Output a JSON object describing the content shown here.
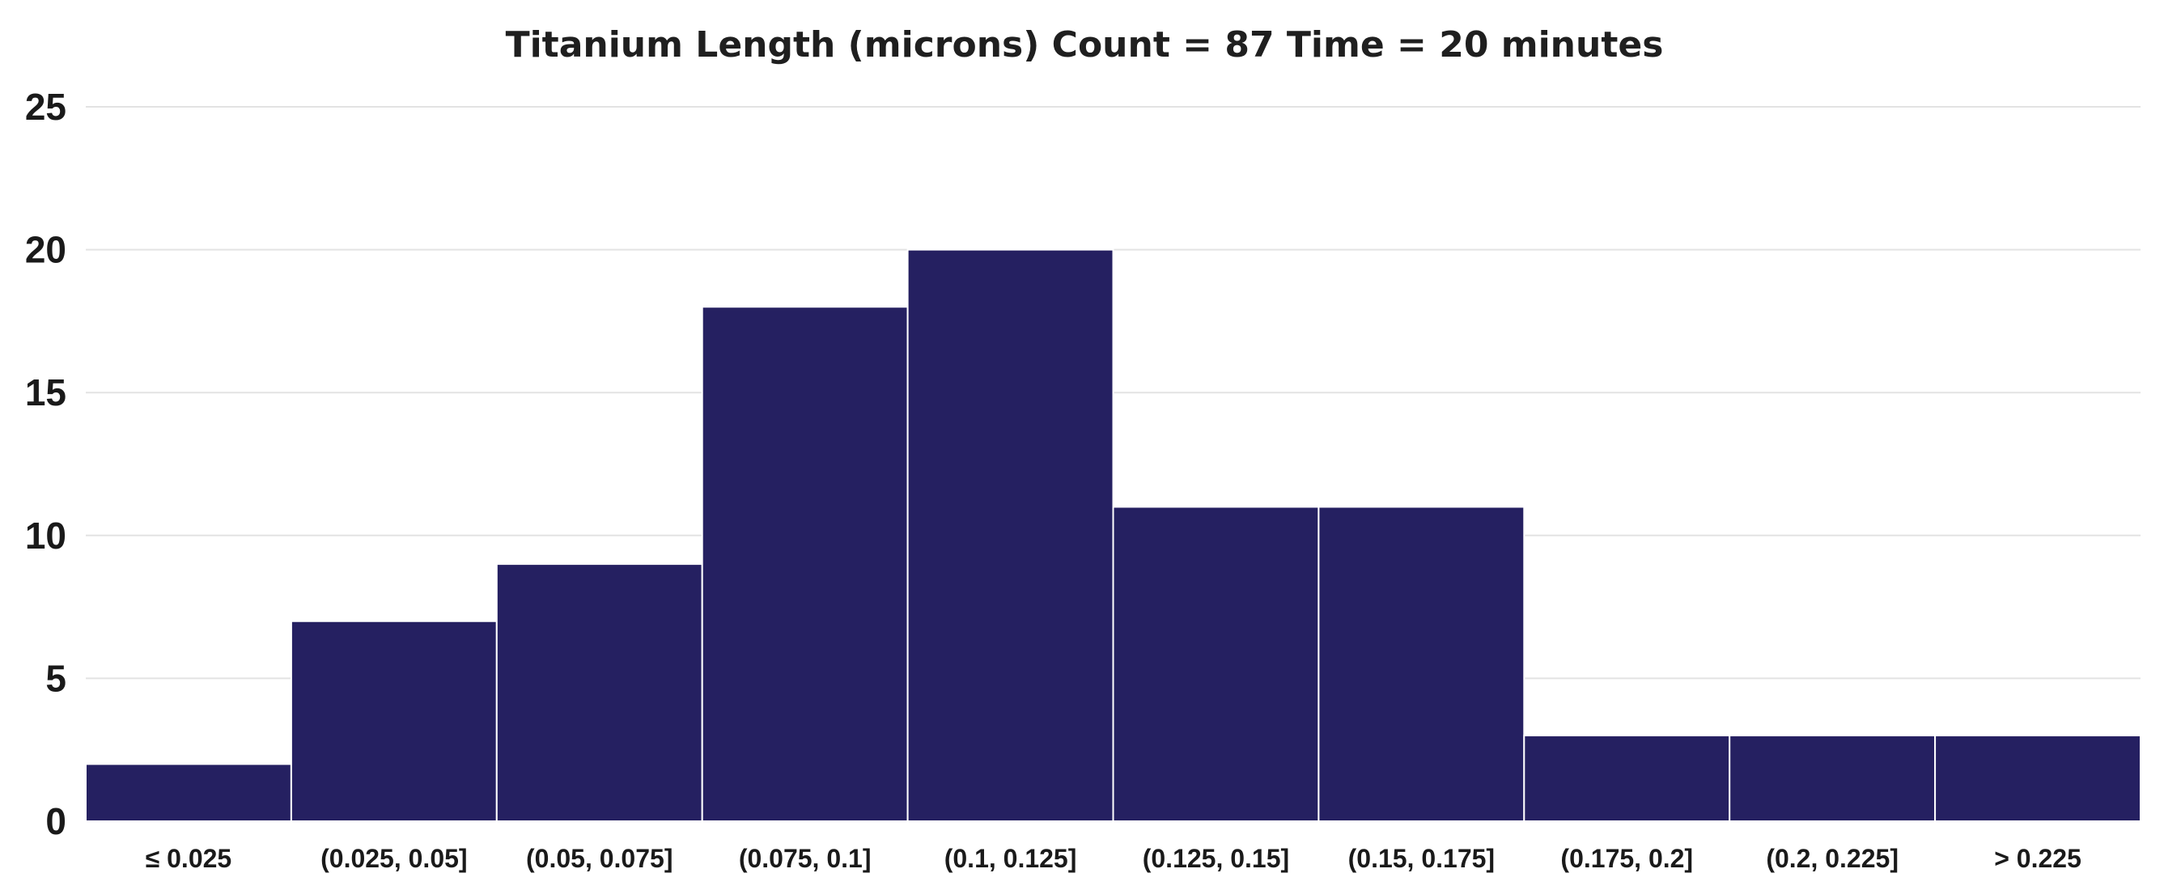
{
  "chart_data": {
    "type": "bar",
    "title": "Titanium Length (microns) Count = 87  Time = 20 minutes",
    "xlabel": "",
    "ylabel": "",
    "categories": [
      "≤ 0.025",
      "(0.025, 0.05]",
      "(0.05, 0.075]",
      "(0.075, 0.1]",
      "(0.1, 0.125]",
      "(0.125, 0.15]",
      "(0.15, 0.175]",
      "(0.175, 0.2]",
      "(0.2, 0.225]",
      "> 0.225"
    ],
    "values": [
      2,
      7,
      9,
      18,
      20,
      11,
      11,
      3,
      3,
      3
    ],
    "ylim": [
      0,
      25
    ],
    "yticks": [
      0,
      5,
      10,
      15,
      20,
      25
    ],
    "grid": true,
    "legend": "none",
    "bar_color": "#252061"
  }
}
